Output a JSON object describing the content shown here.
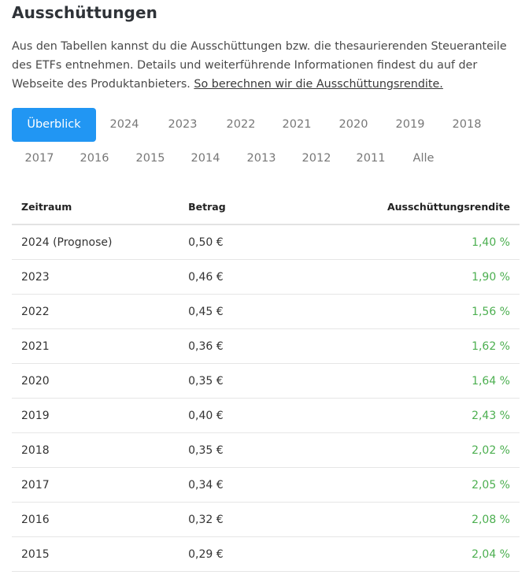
{
  "heading": "Ausschüttungen",
  "intro": {
    "text": "Aus den Tabellen kannst du die Ausschüttungen bzw. die thesaurierenden Steueranteile des ETFs entnehmen. Details und weiterführende Informationen findest du auf der Webseite des Produktanbieters. ",
    "link": "So berechnen wir die Ausschüttungsrendite."
  },
  "tabs": [
    {
      "label": "Überblick",
      "active": true
    },
    {
      "label": "2024"
    },
    {
      "label": "2023"
    },
    {
      "label": "2022"
    },
    {
      "label": "2021"
    },
    {
      "label": "2020"
    },
    {
      "label": "2019"
    },
    {
      "label": "2018"
    },
    {
      "label": "2017"
    },
    {
      "label": "2016"
    },
    {
      "label": "2015"
    },
    {
      "label": "2014"
    },
    {
      "label": "2013"
    },
    {
      "label": "2012"
    },
    {
      "label": "2011"
    },
    {
      "label": "Alle"
    }
  ],
  "table": {
    "headers": {
      "period": "Zeitraum",
      "amount": "Betrag",
      "yield": "Ausschüttungsrendite"
    },
    "rows": [
      {
        "period": "2024 (Prognose)",
        "amount": "0,50 €",
        "yield": "1,40 %"
      },
      {
        "period": "2023",
        "amount": "0,46 €",
        "yield": "1,90 %"
      },
      {
        "period": "2022",
        "amount": "0,45 €",
        "yield": "1,56 %"
      },
      {
        "period": "2021",
        "amount": "0,36 €",
        "yield": "1,62 %"
      },
      {
        "period": "2020",
        "amount": "0,35 €",
        "yield": "1,64 %"
      },
      {
        "period": "2019",
        "amount": "0,40 €",
        "yield": "2,43 %"
      },
      {
        "period": "2018",
        "amount": "0,35 €",
        "yield": "2,02 %"
      },
      {
        "period": "2017",
        "amount": "0,34 €",
        "yield": "2,05 %"
      },
      {
        "period": "2016",
        "amount": "0,32 €",
        "yield": "2,08 %"
      },
      {
        "period": "2015",
        "amount": "0,29 €",
        "yield": "2,04 %"
      }
    ]
  },
  "colors": {
    "accent": "#2196f3",
    "positive": "#4caf50"
  }
}
